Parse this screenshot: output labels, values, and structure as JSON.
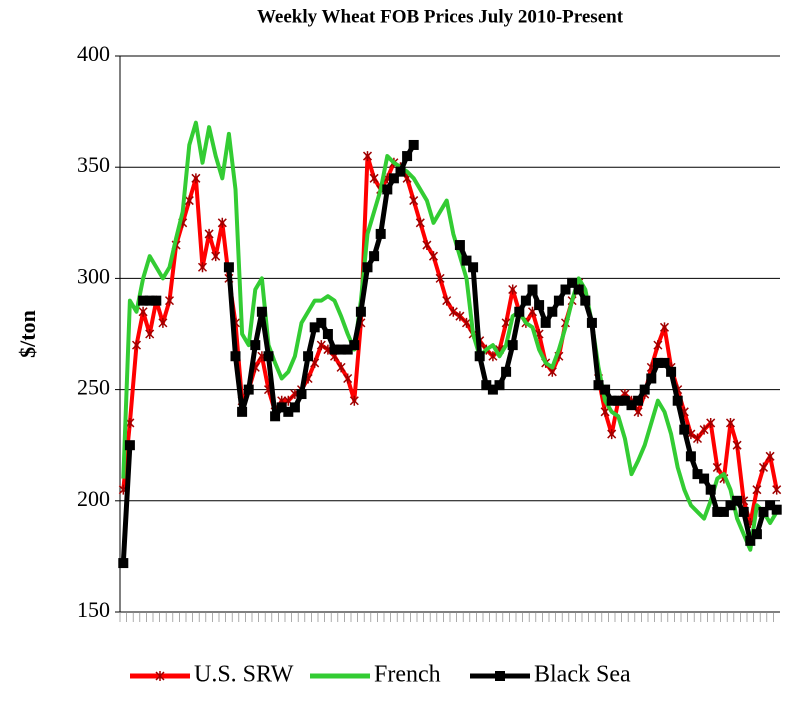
{
  "chart_data": {
    "type": "line",
    "title": "Weekly Wheat FOB Prices July 2010-Present",
    "ylabel": "$/ton",
    "categories": [
      null,
      null,
      null,
      null,
      null,
      null,
      null,
      null,
      null,
      null,
      null,
      null,
      null,
      null,
      null,
      null,
      null,
      null,
      null,
      null,
      null,
      null,
      null,
      null,
      null,
      null,
      null,
      null,
      null,
      null,
      null,
      null,
      null,
      null,
      null,
      null,
      null,
      null,
      null,
      null,
      null,
      null,
      null,
      null,
      null,
      null,
      null,
      null,
      null,
      null,
      null,
      null,
      null,
      null,
      null,
      null,
      null,
      null,
      null,
      null,
      null,
      null,
      null,
      null,
      null,
      null,
      null,
      null,
      null,
      null,
      null,
      null,
      null,
      null,
      null,
      null,
      null,
      null,
      null,
      null,
      null,
      null,
      null,
      null,
      null,
      null,
      null,
      null,
      null,
      null,
      null,
      null,
      null,
      null,
      null,
      null,
      null,
      null,
      null,
      null
    ],
    "ylim": [
      150,
      400
    ],
    "yticks": [
      150,
      200,
      250,
      300,
      350,
      400
    ],
    "grid": true,
    "legend": "bottom",
    "series": [
      {
        "name": "U.S. SRW",
        "color": "#ff0000",
        "marker": "asterisk",
        "values": [
          205,
          235,
          270,
          285,
          275,
          290,
          280,
          290,
          315,
          325,
          335,
          345,
          305,
          320,
          310,
          325,
          300,
          280,
          245,
          250,
          260,
          265,
          250,
          240,
          245,
          245,
          248,
          250,
          255,
          262,
          270,
          268,
          265,
          260,
          255,
          245,
          280,
          355,
          345,
          340,
          345,
          352,
          350,
          345,
          335,
          325,
          315,
          310,
          300,
          290,
          285,
          283,
          280,
          275,
          272,
          268,
          265,
          268,
          280,
          295,
          285,
          280,
          285,
          275,
          262,
          258,
          265,
          280,
          290,
          298,
          290,
          280,
          255,
          240,
          230,
          245,
          248,
          245,
          240,
          248,
          260,
          270,
          278,
          260,
          250,
          240,
          230,
          228,
          232,
          235,
          215,
          210,
          235,
          225,
          200,
          190,
          205,
          215,
          220,
          205
        ]
      },
      {
        "name": "French",
        "color": "#33cc33",
        "marker": "none",
        "values": [
          210,
          290,
          285,
          300,
          310,
          305,
          300,
          305,
          318,
          330,
          360,
          370,
          352,
          368,
          355,
          345,
          365,
          340,
          275,
          270,
          295,
          300,
          270,
          262,
          255,
          258,
          265,
          280,
          285,
          290,
          290,
          292,
          290,
          283,
          275,
          268,
          290,
          320,
          330,
          340,
          355,
          352,
          350,
          348,
          345,
          340,
          335,
          325,
          330,
          335,
          320,
          310,
          300,
          275,
          265,
          268,
          270,
          265,
          270,
          283,
          285,
          280,
          278,
          268,
          262,
          260,
          268,
          278,
          290,
          300,
          295,
          280,
          260,
          245,
          240,
          238,
          228,
          212,
          218,
          225,
          235,
          245,
          240,
          230,
          215,
          205,
          198,
          195,
          192,
          200,
          210,
          212,
          205,
          192,
          185,
          178,
          198,
          195,
          190,
          195
        ]
      },
      {
        "name": "Black Sea",
        "color": "#000000",
        "marker": "square",
        "values": [
          172,
          225,
          null,
          290,
          290,
          290,
          null,
          null,
          null,
          null,
          null,
          null,
          null,
          null,
          null,
          null,
          305,
          265,
          240,
          250,
          270,
          285,
          265,
          238,
          242,
          240,
          242,
          248,
          265,
          278,
          280,
          275,
          268,
          268,
          268,
          270,
          285,
          305,
          310,
          320,
          340,
          345,
          348,
          355,
          360,
          null,
          null,
          null,
          null,
          null,
          null,
          315,
          308,
          305,
          265,
          252,
          250,
          252,
          258,
          270,
          285,
          290,
          295,
          288,
          280,
          285,
          290,
          295,
          298,
          295,
          290,
          280,
          252,
          250,
          245,
          245,
          245,
          243,
          245,
          250,
          255,
          262,
          262,
          258,
          245,
          232,
          220,
          212,
          210,
          205,
          195,
          195,
          198,
          200,
          195,
          182,
          185,
          195,
          198,
          196
        ]
      }
    ]
  }
}
